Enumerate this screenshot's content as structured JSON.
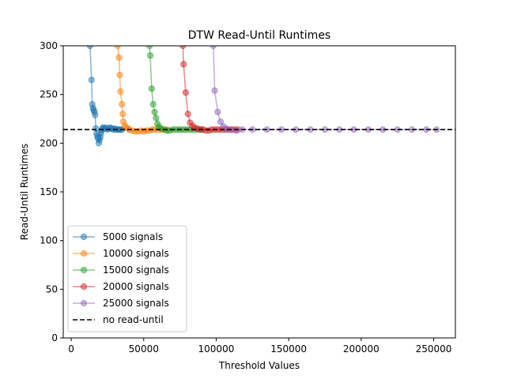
{
  "chart_data": {
    "type": "line",
    "title": "DTW Read-Until Runtimes",
    "xlabel": "Threshold Values",
    "ylabel": "Read-Until Runtimes",
    "xlim": [
      -5500,
      265000
    ],
    "ylim": [
      0,
      300
    ],
    "x_ticks": [
      0,
      50000,
      100000,
      150000,
      200000,
      250000
    ],
    "y_ticks": [
      0,
      50,
      100,
      150,
      200,
      250,
      300
    ],
    "grid": false,
    "legend_position": "lower-left",
    "reference_line": {
      "name": "no read-until",
      "y": 214,
      "color": "#000000",
      "style": "dashed"
    },
    "series": [
      {
        "name": "5000 signals",
        "color": "#1f77b4",
        "points": [
          [
            13000,
            300
          ],
          [
            14000,
            265
          ],
          [
            14500,
            240
          ],
          [
            15000,
            236
          ],
          [
            15500,
            234
          ],
          [
            16000,
            232
          ],
          [
            16500,
            229
          ],
          [
            17000,
            215
          ],
          [
            17500,
            210
          ],
          [
            18000,
            207
          ],
          [
            18500,
            205
          ],
          [
            19000,
            200
          ],
          [
            19500,
            203
          ],
          [
            20000,
            206
          ],
          [
            20500,
            210
          ],
          [
            21000,
            213
          ],
          [
            21500,
            215
          ],
          [
            22000,
            216
          ],
          [
            23000,
            215
          ],
          [
            24000,
            216
          ],
          [
            25000,
            214
          ],
          [
            26000,
            215
          ],
          [
            27000,
            216
          ],
          [
            28000,
            215
          ],
          [
            29000,
            214
          ],
          [
            30000,
            215
          ],
          [
            31000,
            214
          ],
          [
            32000,
            214
          ],
          [
            33000,
            214
          ],
          [
            34000,
            214
          ],
          [
            35000,
            214
          ]
        ]
      },
      {
        "name": "10000 signals",
        "color": "#ff7f0e",
        "points": [
          [
            32000,
            300
          ],
          [
            33000,
            288
          ],
          [
            33500,
            270
          ],
          [
            34000,
            253
          ],
          [
            35000,
            240
          ],
          [
            35500,
            230
          ],
          [
            36000,
            222
          ],
          [
            37000,
            218
          ],
          [
            38000,
            216
          ],
          [
            39000,
            215
          ],
          [
            40000,
            214
          ],
          [
            42000,
            213
          ],
          [
            44000,
            212
          ],
          [
            46000,
            212
          ],
          [
            48000,
            213
          ],
          [
            50000,
            212
          ],
          [
            52000,
            213
          ],
          [
            54000,
            213
          ],
          [
            56000,
            214
          ],
          [
            58000,
            214
          ],
          [
            60000,
            214
          ],
          [
            62000,
            214
          ],
          [
            64000,
            214
          ],
          [
            66000,
            214
          ]
        ]
      },
      {
        "name": "15000 signals",
        "color": "#2ca02c",
        "points": [
          [
            54000,
            300
          ],
          [
            54500,
            290
          ],
          [
            55500,
            256
          ],
          [
            56500,
            240
          ],
          [
            57500,
            232
          ],
          [
            58500,
            226
          ],
          [
            59500,
            220
          ],
          [
            60500,
            217
          ],
          [
            62000,
            215
          ],
          [
            64000,
            214
          ],
          [
            66000,
            213
          ],
          [
            68000,
            213
          ],
          [
            70000,
            214
          ],
          [
            72000,
            214
          ],
          [
            74000,
            214
          ],
          [
            76000,
            214
          ],
          [
            78000,
            214
          ],
          [
            80000,
            214
          ],
          [
            82000,
            214
          ],
          [
            84000,
            214
          ],
          [
            86000,
            214
          ],
          [
            88000,
            214
          ],
          [
            90000,
            214
          ]
        ]
      },
      {
        "name": "20000 signals",
        "color": "#d62728",
        "points": [
          [
            77000,
            300
          ],
          [
            77500,
            281
          ],
          [
            79000,
            252
          ],
          [
            80500,
            230
          ],
          [
            82000,
            221
          ],
          [
            83500,
            218
          ],
          [
            85000,
            216
          ],
          [
            87000,
            215
          ],
          [
            89000,
            214
          ],
          [
            91000,
            214
          ],
          [
            93000,
            213
          ],
          [
            95000,
            213
          ],
          [
            97000,
            214
          ],
          [
            99000,
            214
          ],
          [
            101000,
            214
          ],
          [
            103000,
            214
          ],
          [
            105000,
            214
          ],
          [
            107000,
            214
          ],
          [
            109000,
            214
          ],
          [
            111000,
            214
          ],
          [
            113000,
            214
          ],
          [
            115000,
            214
          ]
        ]
      },
      {
        "name": "25000 signals",
        "color": "#9467bd",
        "points": [
          [
            98000,
            300
          ],
          [
            99000,
            254
          ],
          [
            101000,
            232
          ],
          [
            103000,
            222
          ],
          [
            105000,
            217
          ],
          [
            107000,
            215
          ],
          [
            110000,
            214
          ],
          [
            114000,
            213
          ],
          [
            118000,
            214
          ],
          [
            125000,
            214
          ],
          [
            135000,
            214
          ],
          [
            145000,
            214
          ],
          [
            155000,
            214
          ],
          [
            165000,
            214
          ],
          [
            175000,
            214
          ],
          [
            185000,
            214
          ],
          [
            195000,
            214
          ],
          [
            205000,
            214
          ],
          [
            215000,
            214
          ],
          [
            225000,
            214
          ],
          [
            235000,
            214
          ],
          [
            245000,
            214
          ],
          [
            252000,
            214
          ]
        ]
      }
    ]
  },
  "legend": [
    {
      "label": "5000 signals",
      "color": "#1f77b4",
      "style": "marker-line"
    },
    {
      "label": "10000 signals",
      "color": "#ff7f0e",
      "style": "marker-line"
    },
    {
      "label": "15000 signals",
      "color": "#2ca02c",
      "style": "marker-line"
    },
    {
      "label": "20000 signals",
      "color": "#d62728",
      "style": "marker-line"
    },
    {
      "label": "25000 signals",
      "color": "#9467bd",
      "style": "marker-line"
    },
    {
      "label": "no read-until",
      "color": "#000000",
      "style": "dashed"
    }
  ]
}
